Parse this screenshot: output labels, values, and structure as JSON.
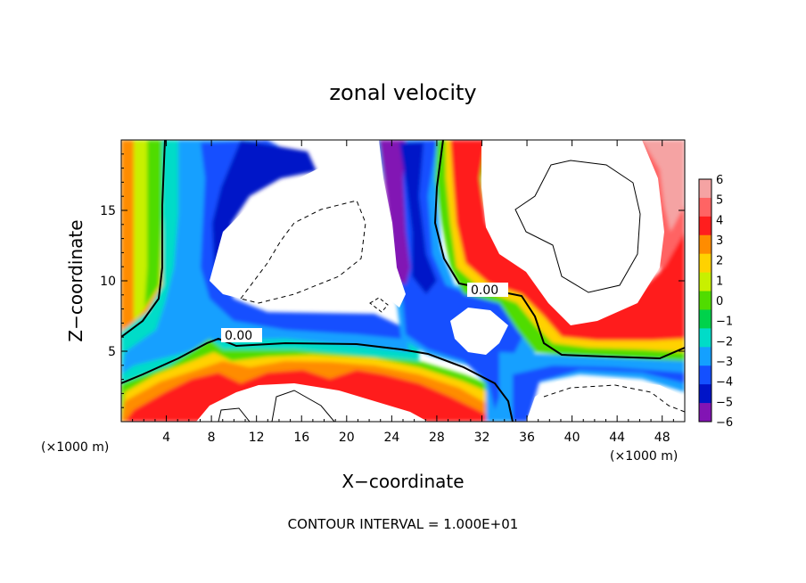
{
  "chart_data": {
    "type": "heatmap",
    "title": "zonal velocity",
    "xlabel": "X−coordinate",
    "ylabel": "Z−coordinate",
    "x_unit": "(×1000 m)",
    "xlim": [
      0,
      50
    ],
    "ylim": [
      0,
      20
    ],
    "x_ticks": [
      "4",
      "8",
      "12",
      "16",
      "20",
      "24",
      "28",
      "32",
      "36",
      "40",
      "44",
      "48"
    ],
    "y_ticks": [
      "5",
      "10",
      "15"
    ],
    "colorbar": {
      "range": [
        -6,
        6
      ],
      "labels": [
        "6",
        "5",
        "4",
        "3",
        "2",
        "1",
        "0",
        "−1",
        "−2",
        "−3",
        "−4",
        "−5",
        "−6"
      ],
      "colors": [
        "#f5a3a3",
        "#ff6464",
        "#ff1e1e",
        "#ff8c00",
        "#ffd200",
        "#c8f000",
        "#50dc00",
        "#00d24b",
        "#00dcc8",
        "#14a0ff",
        "#1450ff",
        "#0014c8",
        "#8214b4"
      ],
      "out_of_range_color": "#ffffff"
    },
    "contour_labels": [
      "0.00",
      "0.00"
    ],
    "contour_interval_note": "CONTOUR INTERVAL = 1.000E+01",
    "field_sketch": [
      {
        "x": 1,
        "z": 12,
        "u": 3.5
      },
      {
        "x": 1,
        "z": 6,
        "u": 1.5
      },
      {
        "x": 5,
        "z": 16,
        "u": -1.5
      },
      {
        "x": 6,
        "z": 8,
        "u": -2.0
      },
      {
        "x": 8,
        "z": 16,
        "u": -3.5
      },
      {
        "x": 12,
        "z": 18,
        "u": -4.5
      },
      {
        "x": 16,
        "z": 18,
        "u": -5.5
      },
      {
        "x": 10,
        "z": 10,
        "u": -5.5
      },
      {
        "x": 14,
        "z": 6.5,
        "u": -3.0
      },
      {
        "x": 22,
        "z": 6.5,
        "u": -4.0
      },
      {
        "x": 10,
        "z": 4.5,
        "u": 3.0
      },
      {
        "x": 20,
        "z": 4,
        "u": 3.5
      },
      {
        "x": 4,
        "z": 2.5,
        "u": 5.0
      },
      {
        "x": 28,
        "z": 3,
        "u": 2.5
      },
      {
        "x": 32,
        "z": 2,
        "u": 0.5
      },
      {
        "x": 25,
        "z": 16,
        "u": -5.0
      },
      {
        "x": 27,
        "z": 11,
        "u": -4.5
      },
      {
        "x": 29,
        "z": 8,
        "u": -4.0
      },
      {
        "x": 30,
        "z": 17,
        "u": 1.0
      },
      {
        "x": 31,
        "z": 14,
        "u": 3.0
      },
      {
        "x": 32,
        "z": 17,
        "u": 5.0
      },
      {
        "x": 36,
        "z": 5,
        "u": -3.0
      },
      {
        "x": 34,
        "z": 2,
        "u": -3.5
      },
      {
        "x": 40,
        "z": 5,
        "u": 1.0
      },
      {
        "x": 42,
        "z": 7,
        "u": 4.5
      },
      {
        "x": 48,
        "z": 8,
        "u": 4.0
      },
      {
        "x": 48,
        "z": 16,
        "u": 5.5
      },
      {
        "x": 14,
        "z": 12,
        "u": 8
      },
      {
        "x": 20,
        "z": 14,
        "u": 8
      },
      {
        "x": 44,
        "z": 14,
        "u": 8
      },
      {
        "x": 40,
        "z": 2,
        "u": 8
      },
      {
        "x": 16,
        "z": 1,
        "u": 8
      }
    ]
  }
}
